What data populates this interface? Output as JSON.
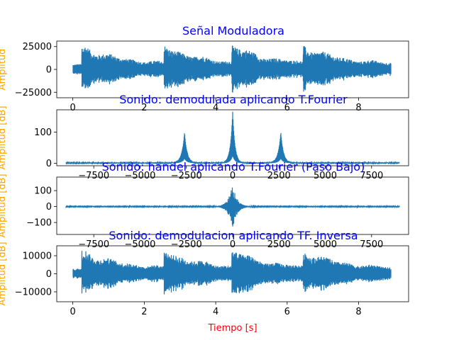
{
  "chart_data": [
    {
      "type": "line",
      "title": "Señal Moduladora",
      "xlabel": "",
      "ylabel": "Amplitud",
      "xlim": [
        -0.45,
        9.4
      ],
      "ylim": [
        -31000,
        31000
      ],
      "xticks": [
        0,
        2,
        4,
        6,
        8
      ],
      "yticks": [
        -25000,
        0,
        25000
      ],
      "ytick_labels": [
        "−25000",
        "0",
        "25000"
      ],
      "signal": {
        "kind": "audio",
        "start": 0,
        "end": 8.9,
        "peak": 26000
      },
      "line_color": "#1f77b4"
    },
    {
      "type": "line",
      "title": "Sonido: demodulada aplicando T.Fourier",
      "xlabel": "",
      "ylabel": "Amplitud [dB]",
      "xlim": [
        -9500,
        9500
      ],
      "ylim": [
        -8,
        172
      ],
      "xticks": [
        -7500,
        -5000,
        -2500,
        0,
        2500,
        5000,
        7500
      ],
      "xtick_labels": [
        "−7500",
        "−5000",
        "−2500",
        "0",
        "2500",
        "5000",
        "7500"
      ],
      "yticks": [
        0,
        100
      ],
      "signal": {
        "kind": "spectrum",
        "start": -9000,
        "end": 9000,
        "peaks": [
          {
            "x": -2600,
            "y": 98
          },
          {
            "x": 0,
            "y": 165
          },
          {
            "x": 2600,
            "y": 98
          }
        ]
      },
      "line_color": "#1f77b4"
    },
    {
      "type": "line",
      "title": "Sonido: handel aplicando T.Fourier (Paso Bajo)",
      "xlabel": "",
      "ylabel": "Amplitud [dB]",
      "xlim": [
        -9500,
        9500
      ],
      "ylim": [
        -175,
        185
      ],
      "xticks": [
        -7500,
        -5000,
        -2500,
        0,
        2500,
        5000,
        7500
      ],
      "xtick_labels": [
        "−7500",
        "−5000",
        "−2500",
        "0",
        "2500",
        "5000",
        "7500"
      ],
      "yticks": [
        -100,
        0,
        100
      ],
      "ytick_labels": [
        "−100",
        "0",
        "100"
      ],
      "signal": {
        "kind": "symmetric",
        "start": -9000,
        "end": 9000,
        "peak": 150,
        "trough": -150
      },
      "line_color": "#1f77b4"
    },
    {
      "type": "line",
      "title": "Sonido: demodulacion aplicando TF. Inversa",
      "xlabel": "Tiempo [s]",
      "ylabel": "Amplitud [dB]",
      "xlim": [
        -0.45,
        9.4
      ],
      "ylim": [
        -15500,
        15500
      ],
      "xticks": [
        0,
        2,
        4,
        6,
        8
      ],
      "yticks": [
        -10000,
        0,
        10000
      ],
      "ytick_labels": [
        "−10000",
        "0",
        "10000"
      ],
      "signal": {
        "kind": "audio",
        "start": 0,
        "end": 8.9,
        "peak": 13000
      },
      "line_color": "#1f77b4"
    }
  ]
}
